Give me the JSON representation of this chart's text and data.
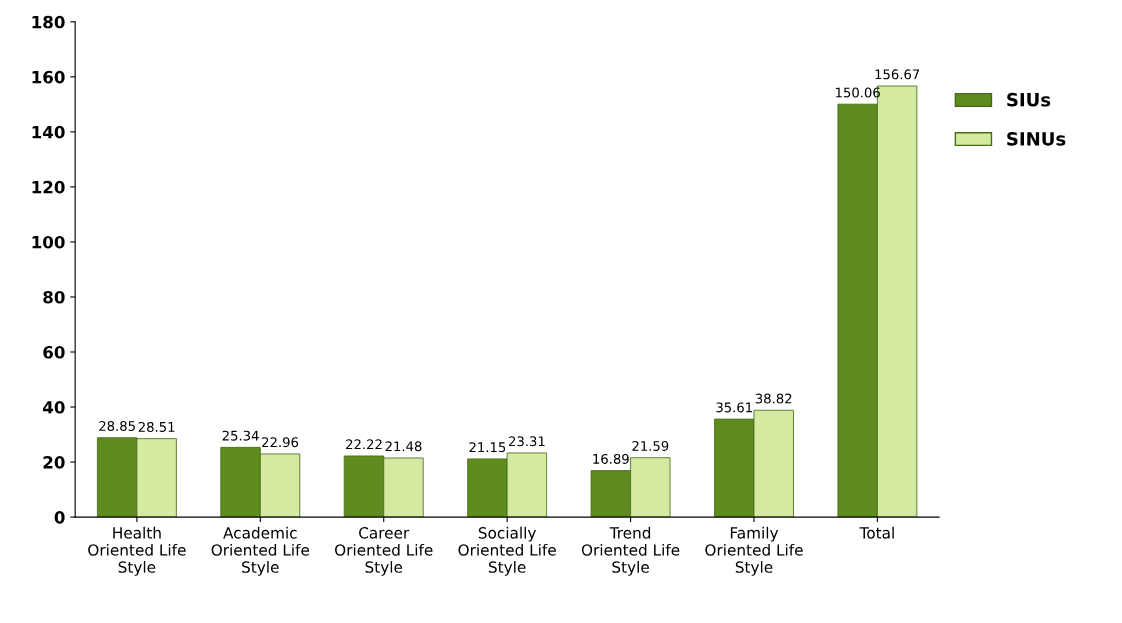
{
  "chart_data": {
    "type": "bar",
    "categories": [
      "Health\nOriented Life\nStyle",
      "Academic\nOriented Life\nStyle",
      "Career\nOriented Life\nStyle",
      "Socially\nOriented Life\nStyle",
      "Trend\nOriented Life\nStyle",
      "Family\nOriented Life\nStyle",
      "Total"
    ],
    "series": [
      {
        "name": "SIUs",
        "color": "#5e8c1f",
        "values": [
          28.85,
          25.34,
          22.22,
          21.15,
          16.89,
          35.61,
          150.06
        ]
      },
      {
        "name": "SINUs",
        "color": "#d3eaa0",
        "values": [
          28.51,
          22.96,
          21.48,
          23.31,
          21.59,
          38.82,
          156.67
        ]
      }
    ],
    "ylim": [
      0,
      180
    ],
    "yticks": [
      0,
      20,
      40,
      60,
      80,
      100,
      120,
      140,
      160,
      180
    ],
    "data_labels": true,
    "legend": "right",
    "grid": false
  }
}
